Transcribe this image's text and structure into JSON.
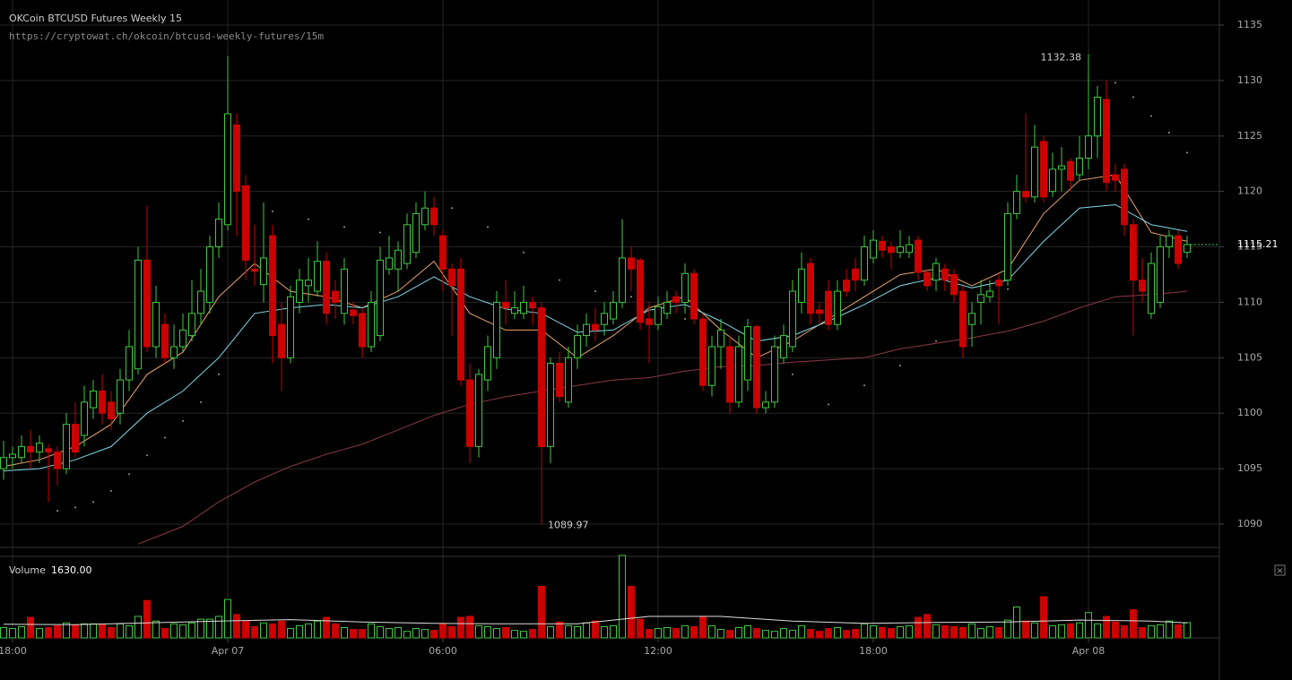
{
  "chart_data": {
    "type": "candlestick",
    "title": "OKCoin BTCUSD Futures Weekly 15",
    "subtitle": "https://cryptowat.ch/okcoin/btcusd-weekly-futures/15m",
    "up_color": "#3fc93f",
    "down_color": "#cc0000",
    "grid": true,
    "xlim": [
      -0.4,
      135.6
    ],
    "xticks": [
      {
        "value": 1,
        "label": "18:00"
      },
      {
        "value": 25,
        "label": "Apr 07"
      },
      {
        "value": 49,
        "label": "06:00"
      },
      {
        "value": 73,
        "label": "12:00"
      },
      {
        "value": 97,
        "label": "18:00"
      },
      {
        "value": 121,
        "label": "Apr 08"
      }
    ],
    "ylim": [
      1087.9,
      1137.26
    ],
    "yticks": [
      1090,
      1095,
      1100,
      1105,
      1110,
      1115,
      1120,
      1125,
      1130,
      1135
    ],
    "open": [
      1095,
      1096,
      1096,
      1097,
      1096.5,
      1096.8,
      1096.5,
      1095,
      1099,
      1098,
      1100.5,
      1102,
      1101,
      1100,
      1103,
      1104,
      1113.8,
      1106,
      1108,
      1105,
      1106,
      1107,
      1109,
      1110,
      1115,
      1117,
      1126,
      1120.5,
      1113,
      1111.6,
      1116,
      1108,
      1105,
      1110,
      1111.5,
      1111,
      1113.7,
      1111,
      1109,
      1109.3,
      1109,
      1106,
      1107,
      1113,
      1113,
      1113.5,
      1114.5,
      1117,
      1118.5,
      1116,
      1113,
      1113,
      1103,
      1097,
      1103,
      1105,
      1110,
      1109,
      1109,
      1110,
      1109.5,
      1097,
      1104.5,
      1101,
      1105,
      1107,
      1108,
      1108,
      1108.5,
      1110,
      1114,
      1113.8,
      1108.5,
      1108,
      1109,
      1110.5,
      1110,
      1112.6,
      1108.5,
      1102.5,
      1106,
      1106,
      1101,
      1103,
      1107.8,
      1100.5,
      1101,
      1105,
      1106,
      1110,
      1113.5,
      1109.3,
      1111,
      1108,
      1112,
      1113,
      1112,
      1114,
      1115.5,
      1115,
      1114.5,
      1114.5,
      1115.6,
      1112.7,
      1112,
      1113,
      1112.5,
      1111,
      1108,
      1110,
      1110.5,
      1112,
      1112,
      1118,
      1120,
      1119.5,
      1124.5,
      1120,
      1122,
      1122.7,
      1121.5,
      1123,
      1125,
      1128.3,
      1121.5,
      1122,
      1117,
      1112,
      1109,
      1110,
      1115,
      1116,
      1114.5
    ],
    "high": [
      1097.5,
      1097,
      1098,
      1098.5,
      1098,
      1097.2,
      1097,
      1100,
      1101,
      1102.5,
      1103,
      1103.5,
      1102,
      1104,
      1107.5,
      1115,
      1118.7,
      1111.5,
      1109,
      1108,
      1109,
      1112,
      1113,
      1116,
      1119,
      1132.2,
      1127,
      1121.5,
      1117,
      1119,
      1117,
      1110,
      1111.5,
      1113,
      1114,
      1115.5,
      1114.5,
      1112,
      1114,
      1110,
      1109.5,
      1111,
      1115,
      1116,
      1115.5,
      1118,
      1119,
      1120,
      1119.5,
      1116.5,
      1113.5,
      1114,
      1104.5,
      1104,
      1107,
      1111,
      1112,
      1111,
      1111.5,
      1110.5,
      1110,
      1105,
      1105.5,
      1106,
      1108,
      1109,
      1109.5,
      1110,
      1111,
      1117.5,
      1115,
      1114,
      1110,
      1110.5,
      1111,
      1111,
      1113.5,
      1113,
      1109,
      1107,
      1108.5,
      1107,
      1107,
      1108.5,
      1108,
      1102,
      1107,
      1108,
      1112,
      1114.5,
      1114,
      1110,
      1112,
      1112,
      1113,
      1114,
      1116,
      1116.5,
      1116,
      1115.5,
      1116.5,
      1116,
      1116,
      1113,
      1114,
      1113.5,
      1113,
      1111.5,
      1110,
      1112,
      1112,
      1112.5,
      1119,
      1121.5,
      1127,
      1126,
      1125,
      1123.5,
      1124,
      1123,
      1125,
      1132.38,
      1129.5,
      1130,
      1122.5,
      1122.5,
      1117.5,
      1114,
      1114.5,
      1116,
      1116.5,
      1116.5,
      1116
    ],
    "low": [
      1094,
      1095,
      1095.5,
      1095,
      1095.5,
      1092,
      1093.5,
      1094.5,
      1096,
      1097,
      1099.5,
      1099,
      1098.5,
      1099,
      1102,
      1103.5,
      1105.5,
      1105,
      1104.5,
      1104,
      1105.5,
      1106.5,
      1108,
      1109,
      1114,
      1116.5,
      1116,
      1112,
      1111.5,
      1110,
      1104.5,
      1102,
      1104.5,
      1109,
      1110,
      1110.5,
      1108,
      1108.5,
      1108,
      1108,
      1105,
      1105.5,
      1106.5,
      1112.5,
      1111,
      1113,
      1114,
      1116.5,
      1116,
      1111,
      1107,
      1102.5,
      1095.5,
      1096,
      1102,
      1104,
      1108,
      1108.5,
      1108.5,
      1108,
      1089.97,
      1095.5,
      1101,
      1100.5,
      1104,
      1106,
      1106.5,
      1107,
      1108,
      1109.5,
      1111,
      1107.5,
      1104.5,
      1107.5,
      1108.5,
      1109,
      1109,
      1108,
      1102,
      1101.5,
      1104,
      1100,
      1100.5,
      1102,
      1100,
      1100,
      1100.5,
      1104.5,
      1105.5,
      1109,
      1108,
      1108,
      1107.5,
      1107.5,
      1110.5,
      1111,
      1111.5,
      1113.5,
      1114,
      1113,
      1114,
      1114,
      1112,
      1111,
      1111,
      1111,
      1110,
      1105,
      1106,
      1108,
      1110,
      1108,
      1111.5,
      1117.5,
      1119,
      1119,
      1119,
      1119.5,
      1120,
      1120,
      1121,
      1122,
      1123,
      1120,
      1120,
      1116,
      1107,
      1110,
      1108.5,
      1109.5,
      1114,
      1113,
      1114
    ],
    "close": [
      1096,
      1096.3,
      1097,
      1096.5,
      1097.3,
      1096.5,
      1095,
      1099,
      1096.5,
      1101,
      1102,
      1100,
      1099.5,
      1103,
      1106,
      1113.8,
      1106,
      1110,
      1105,
      1106,
      1107.5,
      1109,
      1111,
      1115,
      1117.5,
      1127,
      1120,
      1113.8,
      1112.8,
      1114,
      1107,
      1105,
      1110.5,
      1112,
      1112,
      1113.7,
      1109,
      1110,
      1113,
      1108.8,
      1106,
      1110,
      1113.8,
      1114,
      1114.7,
      1117,
      1118,
      1118.5,
      1117,
      1113,
      1111.5,
      1103,
      1097,
      1103.5,
      1106,
      1110,
      1109.5,
      1109.5,
      1110,
      1109.5,
      1097,
      1104.5,
      1101.5,
      1105,
      1107,
      1108,
      1107.5,
      1109,
      1110,
      1114,
      1113,
      1108.2,
      1108,
      1109.6,
      1110,
      1110,
      1112.6,
      1108.5,
      1102.5,
      1106,
      1107.5,
      1101,
      1106,
      1107.8,
      1100.5,
      1101,
      1106,
      1107,
      1111,
      1113,
      1109,
      1109,
      1108,
      1111,
      1111,
      1112,
      1115,
      1115.6,
      1114.7,
      1114.5,
      1115,
      1115.2,
      1112.7,
      1111.5,
      1113.5,
      1112,
      1110.7,
      1106,
      1109,
      1110.7,
      1111,
      1111.5,
      1118,
      1120,
      1119.5,
      1124,
      1119.5,
      1122,
      1122.3,
      1121,
      1123,
      1125,
      1128.5,
      1120.8,
      1121,
      1117,
      1112,
      1111,
      1113.5,
      1115,
      1116,
      1113.5,
      1115.21
    ],
    "overlays": [
      {
        "style": "line",
        "color": "#e8a36b",
        "x": [
          0,
          4,
          8,
          12,
          16,
          20,
          24,
          28,
          32,
          36,
          40,
          44,
          48,
          52,
          56,
          60,
          64,
          68,
          72,
          76,
          80,
          84,
          88,
          92,
          96,
          100,
          104,
          108,
          112,
          116,
          120,
          124,
          128,
          132
        ],
        "values": [
          1095.2,
          1095.8,
          1097,
          1099,
          1103.5,
          1105.5,
          1110.5,
          1113.5,
          1111,
          1110.5,
          1109.5,
          1111,
          1113.7,
          1109,
          1107.5,
          1107.5,
          1105,
          1107,
          1109.5,
          1110.5,
          1107.5,
          1105,
          1106.5,
          1108.5,
          1110.5,
          1112.5,
          1113,
          1111.5,
          1113,
          1118,
          1121,
          1121.5,
          1116.3,
          1115.5
        ]
      },
      {
        "style": "line",
        "color": "#7fd7e6",
        "x": [
          0,
          4,
          8,
          12,
          16,
          20,
          24,
          28,
          32,
          36,
          40,
          44,
          48,
          52,
          56,
          60,
          64,
          68,
          72,
          76,
          80,
          84,
          88,
          92,
          96,
          100,
          104,
          108,
          112,
          116,
          120,
          124,
          128,
          132
        ],
        "values": [
          1094.8,
          1095,
          1095.8,
          1097,
          1100,
          1102,
          1105,
          1109,
          1109.5,
          1109.8,
          1109.5,
          1110.5,
          1112.3,
          1110.5,
          1109.4,
          1109,
          1107.3,
          1107.5,
          1109.3,
          1109.8,
          1108.3,
          1106.5,
          1107,
          1108.3,
          1109.8,
          1111.5,
          1112.2,
          1111.3,
          1112,
          1115.5,
          1118.5,
          1118.8,
          1117,
          1116.4
        ]
      },
      {
        "style": "line",
        "color": "#8a3a46",
        "x": [
          15,
          20,
          24,
          28,
          32,
          36,
          40,
          44,
          48,
          52,
          56,
          60,
          64,
          68,
          72,
          76,
          80,
          84,
          88,
          92,
          96,
          100,
          104,
          108,
          112,
          116,
          120,
          124,
          128,
          132
        ],
        "values": [
          1088.2,
          1089.8,
          1092,
          1093.8,
          1095.2,
          1096.3,
          1097.2,
          1098.5,
          1099.8,
          1100.8,
          1101.5,
          1102,
          1102.5,
          1103,
          1103.2,
          1103.8,
          1104.2,
          1104.3,
          1104.6,
          1104.8,
          1105,
          1105.8,
          1106.3,
          1106.8,
          1107.4,
          1108.3,
          1109.5,
          1110.5,
          1110.7,
          1111
        ]
      },
      {
        "style": "dots",
        "color": "#9a9a9a",
        "x": [
          6,
          8,
          10,
          12,
          14,
          16,
          18,
          20,
          22,
          24,
          30,
          34,
          38,
          42,
          50,
          54,
          58,
          62,
          66,
          70,
          76,
          80,
          84,
          88,
          92,
          96,
          100,
          104,
          108,
          112,
          124,
          126,
          128,
          130,
          132
        ],
        "values": [
          1091.2,
          1091.5,
          1092,
          1093,
          1094.5,
          1096.2,
          1097.8,
          1099.3,
          1101,
          1103.5,
          1118.2,
          1117.5,
          1116.8,
          1116.3,
          1118.5,
          1116.8,
          1114.5,
          1112,
          1111,
          1110.5,
          1108.5,
          1107,
          1105.5,
          1103.5,
          1100.8,
          1102.5,
          1104.3,
          1106.5,
          1108.7,
          1111.2,
          1129.8,
          1128.5,
          1126.8,
          1125.3,
          1123.5
        ]
      }
    ],
    "volume": {
      "label": "Volume",
      "readout": "1630.00",
      "ylim": [
        0,
        8800
      ],
      "values": [
        1100,
        1000,
        1200,
        2200,
        1000,
        1100,
        1300,
        1600,
        1400,
        1500,
        1500,
        1400,
        1100,
        1500,
        1300,
        2300,
        4000,
        1800,
        1000,
        1500,
        1400,
        1600,
        2000,
        2000,
        2300,
        4100,
        2500,
        1800,
        1200,
        1600,
        1500,
        1800,
        1000,
        1300,
        1500,
        1800,
        2200,
        1500,
        1100,
        900,
        900,
        1500,
        1200,
        1000,
        1100,
        700,
        1000,
        900,
        800,
        1500,
        1200,
        2200,
        2300,
        1300,
        1200,
        1000,
        1100,
        800,
        700,
        900,
        5500,
        1200,
        1700,
        1300,
        1200,
        1600,
        1800,
        1200,
        1300,
        8800,
        5500,
        2000,
        900,
        1000,
        1100,
        1000,
        1300,
        1200,
        2300,
        1300,
        900,
        800,
        1100,
        1300,
        1000,
        800,
        700,
        1000,
        800,
        1300,
        900,
        700,
        1000,
        1100,
        800,
        900,
        1500,
        1300,
        1100,
        1000,
        1200,
        1300,
        2200,
        2500,
        1400,
        1300,
        1200,
        1100,
        1500,
        1000,
        1200,
        1100,
        1900,
        3300,
        1800,
        1600,
        4400,
        1300,
        1400,
        1500,
        1600,
        2700,
        1500,
        2300,
        1700,
        1300,
        3000,
        1100,
        1300,
        1400,
        1800,
        1400,
        1630
      ],
      "overlay": {
        "color": "#dddddd",
        "x": [
          0,
          8,
          16,
          24,
          32,
          40,
          48,
          56,
          64,
          72,
          80,
          88,
          96,
          104,
          112,
          120,
          128,
          132
        ],
        "values": [
          1450,
          1420,
          1600,
          1800,
          1950,
          1700,
          1550,
          1500,
          1500,
          2300,
          2300,
          1800,
          1550,
          1650,
          1700,
          1900,
          1800,
          1600
        ]
      }
    }
  },
  "ui": {
    "close_button": "×"
  }
}
